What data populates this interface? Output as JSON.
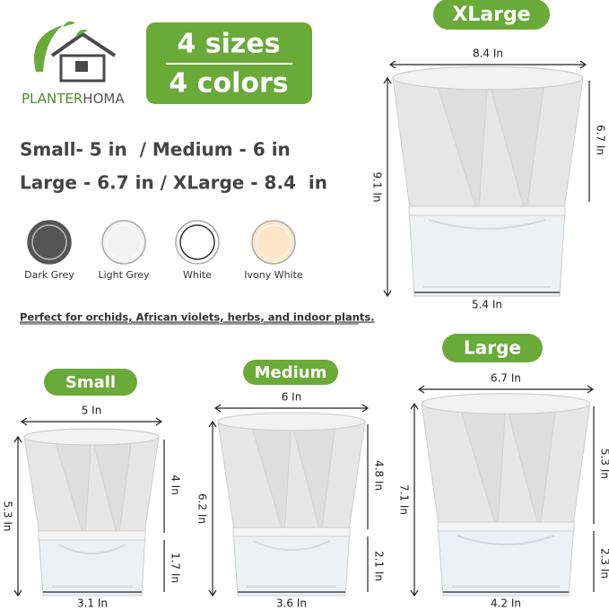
{
  "brand": {
    "name_part1": "PLANTER",
    "name_part2": "HOMA"
  },
  "badge": {
    "line1": "4 sizes",
    "line2": "4 colors"
  },
  "size_lines": [
    "Small- 5 in  / Medium - 6 in",
    "Large - 6.7 in / XLarge - 8.4  in"
  ],
  "colors": [
    {
      "label": "Dark Grey",
      "swatch": "#555555"
    },
    {
      "label": "Light Grey",
      "swatch": "#f3f3f3"
    },
    {
      "label": "White",
      "swatch": "#ffffff"
    },
    {
      "label": "Ivony White",
      "swatch": "#fde6c8"
    }
  ],
  "tagline": "Perfect for orchids, African violets, herbs, and indoor plants.",
  "pots": [
    {
      "name": "XLarge",
      "top_width": "8.4 In",
      "body_height": "6.7 In",
      "total_height": "9.1 In",
      "bottom_width": "5.4 In"
    },
    {
      "name": "Large",
      "top_width": "6.7 In",
      "body_height": "5.3 In",
      "reservoir_height": "2.3 In",
      "total_height": "7.1 In",
      "bottom_width": "4.2 In"
    },
    {
      "name": "Medium",
      "top_width": "6 In",
      "body_height": "4.8 In",
      "reservoir_height": "2.1 In",
      "total_height": "6.2 In",
      "bottom_width": "3.6 In"
    },
    {
      "name": "Small",
      "top_width": "5 In",
      "body_height": "4 In",
      "reservoir_height": "1.7 In",
      "total_height": "5.3 In",
      "bottom_width": "3.1 In"
    }
  ]
}
